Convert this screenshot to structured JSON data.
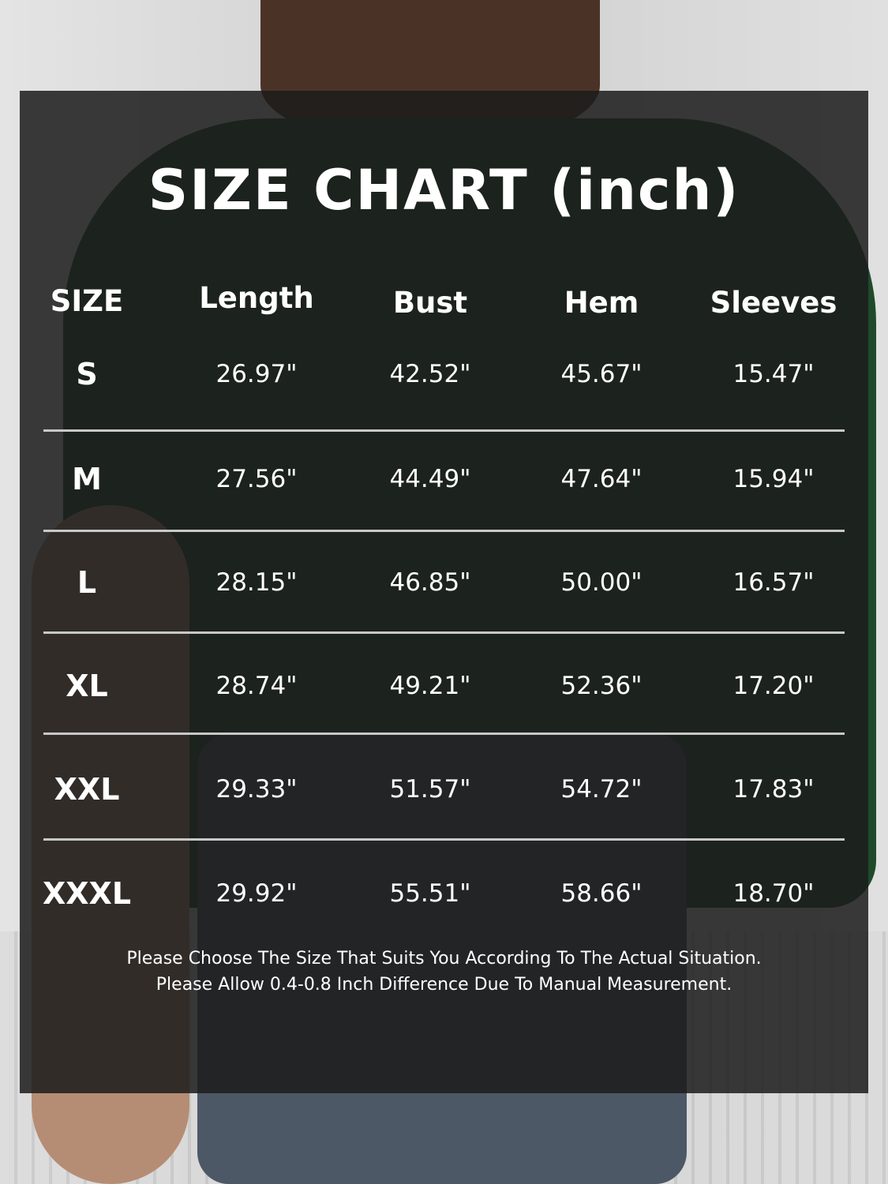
{
  "title": "SIZE CHART (inch)",
  "headers": [
    "SIZE",
    "Length",
    "Bust",
    "Hem",
    "Sleeves"
  ],
  "rows": [
    {
      "size": "S",
      "values": [
        "26.97\"",
        "42.52\"",
        "45.67\"",
        "15.47\""
      ]
    },
    {
      "size": "M",
      "values": [
        "27.56\"",
        "44.49\"",
        "47.64\"",
        "15.94\""
      ]
    },
    {
      "size": "L",
      "values": [
        "28.15\"",
        "46.85\"",
        "50.00\"",
        "16.57\""
      ]
    },
    {
      "size": "XL",
      "values": [
        "28.74\"",
        "49.21\"",
        "52.36\"",
        "17.20\""
      ]
    },
    {
      "size": "XXL",
      "values": [
        "29.33\"",
        "51.57\"",
        "54.72\"",
        "17.83\""
      ]
    },
    {
      "size": "XXXL",
      "values": [
        "29.92\"",
        "55.51\"",
        "58.66\"",
        "18.70\""
      ]
    }
  ],
  "notes": [
    "Please Choose The Size That Suits You According To The Actual Situation.",
    "Please Allow 0.4-0.8 Inch Difference Due To Manual Measurement."
  ],
  "colors": {
    "overlay": "#1c1c1c",
    "shirt": "#1f4a2a",
    "text": "#ffffff"
  }
}
